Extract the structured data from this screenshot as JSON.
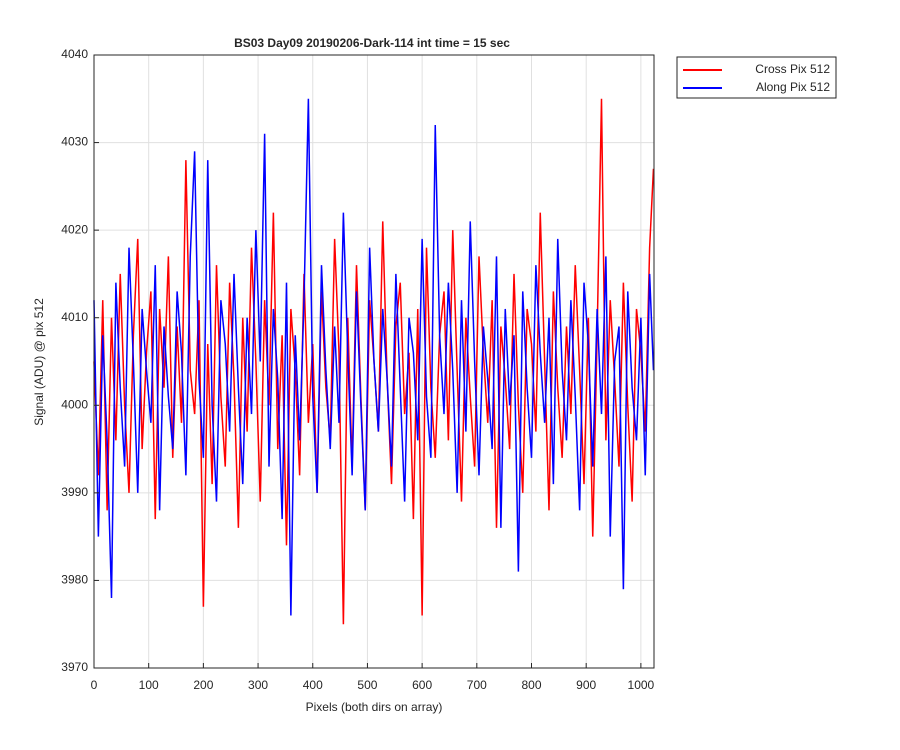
{
  "chart_data": {
    "type": "line",
    "title": "BS03 Day09 20190206-Dark-114 int time = 15 sec",
    "xlabel": "Pixels (both dirs on array)",
    "ylabel": "Signal (ADU) @ pix 512",
    "x": [
      0,
      8,
      16,
      24,
      32,
      40,
      48,
      56,
      64,
      72,
      80,
      88,
      96,
      104,
      112,
      120,
      128,
      136,
      144,
      152,
      160,
      168,
      176,
      184,
      192,
      200,
      208,
      216,
      224,
      232,
      240,
      248,
      256,
      264,
      272,
      280,
      288,
      296,
      304,
      312,
      320,
      328,
      336,
      344,
      352,
      360,
      368,
      376,
      384,
      392,
      400,
      408,
      416,
      424,
      432,
      440,
      448,
      456,
      464,
      472,
      480,
      488,
      496,
      504,
      512,
      520,
      528,
      536,
      544,
      552,
      560,
      568,
      576,
      584,
      592,
      600,
      608,
      616,
      624,
      632,
      640,
      648,
      656,
      664,
      672,
      680,
      688,
      696,
      704,
      712,
      720,
      728,
      736,
      744,
      752,
      760,
      768,
      776,
      784,
      792,
      800,
      808,
      816,
      824,
      832,
      840,
      848,
      856,
      864,
      872,
      880,
      888,
      896,
      904,
      912,
      920,
      928,
      936,
      944,
      952,
      960,
      968,
      976,
      984,
      992,
      1000,
      1008,
      1016,
      1023
    ],
    "series": [
      {
        "name": "Cross Pix 512",
        "color": "#ff0000",
        "values": [
          4005,
          3992,
          4012,
          3988,
          4010,
          3996,
          4015,
          4000,
          3990,
          4008,
          4019,
          3995,
          4006,
          4013,
          3987,
          4011,
          4002,
          4017,
          3994,
          4009,
          3998,
          4028,
          4004,
          3999,
          4012,
          3977,
          4007,
          3991,
          4016,
          4001,
          3993,
          4014,
          4003,
          3986,
          4010,
          3997,
          4018,
          4005,
          3989,
          4012,
          4000,
          4022,
          3995,
          4008,
          3984,
          4011,
          4004,
          3992,
          4015,
          3998,
          4007,
          3990,
          4013,
          4002,
          3996,
          4019,
          4006,
          3975,
          4010,
          3993,
          4016,
          4001,
          3988,
          4012,
          4005,
          3997,
          4021,
          4003,
          3991,
          4009,
          4014,
          3999,
          4006,
          3987,
          4011,
          3976,
          4018,
          4002,
          3994,
          4008,
          4013,
          3996,
          4020,
          4004,
          3989,
          4010,
          4001,
          3993,
          4017,
          4006,
          3998,
          4012,
          3986,
          4009,
          4003,
          3995,
          4015,
          4000,
          3990,
          4011,
          4007,
          3997,
          4022,
          4005,
          3988,
          4013,
          4002,
          3994,
          4009,
          3999,
          4016,
          4004,
          3991,
          4010,
          3985,
          4008,
          4035,
          3996,
          4012,
          4003,
          3993,
          4014,
          4000,
          3989,
          4011,
          4006,
          3997,
          4018,
          4027
        ]
      },
      {
        "name": "Along Pix 512",
        "color": "#0000ff",
        "values": [
          4012,
          3985,
          4008,
          3996,
          3978,
          4014,
          4002,
          3993,
          4018,
          4005,
          3990,
          4011,
          4004,
          3998,
          4016,
          3988,
          4009,
          4001,
          3995,
          4013,
          4006,
          3992,
          4017,
          4029,
          4003,
          3994,
          4028,
          4000,
          3989,
          4012,
          4007,
          3997,
          4015,
          4002,
          3991,
          4010,
          3999,
          4020,
          4005,
          4031,
          3993,
          4011,
          4003,
          3987,
          4014,
          3976,
          4008,
          3996,
          4012,
          4035,
          4001,
          3990,
          4016,
          4004,
          3995,
          4009,
          3998,
          4022,
          4006,
          3992,
          4013,
          4000,
          3988,
          4018,
          4005,
          3997,
          4011,
          4003,
          3993,
          4015,
          4002,
          3989,
          4010,
          4006,
          3996,
          4019,
          4001,
          3994,
          4032,
          4008,
          3999,
          4014,
          4004,
          3990,
          4012,
          3997,
          4021,
          4005,
          3992,
          4009,
          4003,
          3995,
          4017,
          3986,
          4011,
          4000,
          4008,
          3981,
          4013,
          4002,
          3994,
          4016,
          4006,
          3998,
          4010,
          3991,
          4019,
          4004,
          3996,
          4012,
          4001,
          3988,
          4014,
          4007,
          3993,
          4011,
          3999,
          4017,
          3985,
          4005,
          4009,
          3979,
          4013,
          4002,
          3996,
          4010,
          3992,
          4015,
          4004
        ]
      }
    ],
    "xlim": [
      0,
      1024
    ],
    "xticks": [
      0,
      100,
      200,
      300,
      400,
      500,
      600,
      700,
      800,
      900,
      1000
    ],
    "ylim": [
      3970,
      4040
    ],
    "yticks": [
      3970,
      3980,
      3990,
      4000,
      4010,
      4020,
      4030,
      4040
    ],
    "grid": true,
    "legend": "outside-top-right"
  }
}
